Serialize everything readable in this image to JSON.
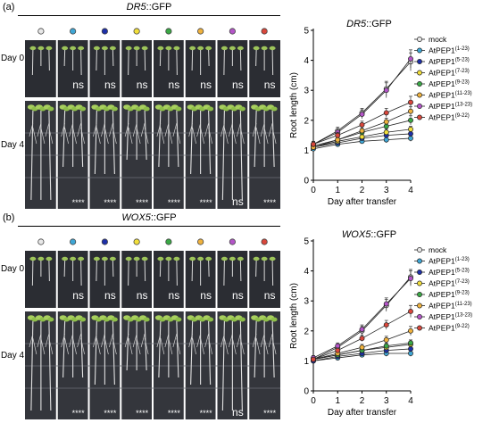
{
  "series_colors": [
    "#e8e8e8",
    "#3fa7d6",
    "#1d2fa8",
    "#f2df3a",
    "#3aa845",
    "#f0b23d",
    "#b455c8",
    "#d9473c"
  ],
  "panels": [
    {
      "label": "(a)",
      "reporter": "DR5",
      "suffix": "::GFP",
      "days": [
        "Day 0",
        "Day 4"
      ],
      "day0_sig": [
        "",
        "ns",
        "ns",
        "ns",
        "ns",
        "ns",
        "ns",
        "ns"
      ],
      "day4_sig": [
        "",
        "****",
        "****",
        "****",
        "****",
        "****",
        "ns",
        "****"
      ]
    },
    {
      "label": "(b)",
      "reporter": "WOX5",
      "suffix": "::GFP",
      "days": [
        "Day 0",
        "Day 4"
      ],
      "day0_sig": [
        "",
        "ns",
        "ns",
        "ns",
        "ns",
        "ns",
        "ns",
        "ns"
      ],
      "day4_sig": [
        "",
        "****",
        "****",
        "****",
        "****",
        "****",
        "ns",
        "****"
      ]
    }
  ],
  "chart_data": [
    {
      "type": "line",
      "title": "DR5::GFP",
      "xlabel": "Day after transfer",
      "ylabel": "Root length (cm)",
      "x": [
        0,
        1,
        2,
        3,
        4
      ],
      "xlim": [
        0,
        4
      ],
      "ylim": [
        0,
        5
      ],
      "xticks": [
        "0",
        "1",
        "2",
        "3",
        "4"
      ],
      "yticks": [
        "0",
        "1",
        "2",
        "3",
        "4",
        "5"
      ],
      "legend_position": "right",
      "series": [
        {
          "name": "mock",
          "base": "mock",
          "sup": "",
          "values": [
            1.2,
            1.65,
            2.25,
            3.05,
            3.95
          ],
          "err": [
            0.1,
            0.12,
            0.15,
            0.25,
            0.3
          ]
        },
        {
          "name": "AtPEP1(1-23)",
          "base": "AtPEP1",
          "sup": "(1-23)",
          "values": [
            1.05,
            1.2,
            1.3,
            1.35,
            1.4
          ],
          "err": [
            0.05,
            0.06,
            0.08,
            0.1,
            0.1
          ]
        },
        {
          "name": "AtPEP1(5-23)",
          "base": "AtPEP1",
          "sup": "(5-23)",
          "values": [
            1.1,
            1.25,
            1.4,
            1.5,
            1.55
          ],
          "err": [
            0.05,
            0.06,
            0.08,
            0.1,
            0.1
          ]
        },
        {
          "name": "AtPEP1(7-23)",
          "base": "AtPEP1",
          "sup": "(7-23)",
          "values": [
            1.1,
            1.3,
            1.45,
            1.6,
            1.7
          ],
          "err": [
            0.05,
            0.06,
            0.08,
            0.1,
            0.1
          ]
        },
        {
          "name": "AtPEP1(9-23)",
          "base": "AtPEP1",
          "sup": "(9-23)",
          "values": [
            1.15,
            1.35,
            1.6,
            1.8,
            2.0
          ],
          "err": [
            0.05,
            0.08,
            0.1,
            0.12,
            0.15
          ]
        },
        {
          "name": "AtPEP1(11-23)",
          "base": "AtPEP1",
          "sup": "(11-23)",
          "values": [
            1.1,
            1.35,
            1.65,
            1.95,
            2.3
          ],
          "err": [
            0.05,
            0.08,
            0.1,
            0.12,
            0.15
          ]
        },
        {
          "name": "AtPEP1(13-23)",
          "base": "AtPEP1",
          "sup": "(13-23)",
          "values": [
            1.2,
            1.6,
            2.2,
            3.0,
            4.05
          ],
          "err": [
            0.1,
            0.12,
            0.15,
            0.25,
            0.3
          ]
        },
        {
          "name": "AtPEP1(9-22)",
          "base": "AtPEP1",
          "sup": "(9-22)",
          "values": [
            1.2,
            1.5,
            1.85,
            2.25,
            2.6
          ],
          "err": [
            0.08,
            0.1,
            0.12,
            0.15,
            0.2
          ]
        }
      ]
    },
    {
      "type": "line",
      "title": "WOX5::GFP",
      "xlabel": "Day after transfer",
      "ylabel": "Root length (cm)",
      "x": [
        0,
        1,
        2,
        3,
        4
      ],
      "xlim": [
        0,
        4
      ],
      "ylim": [
        0,
        5
      ],
      "xticks": [
        "0",
        "1",
        "2",
        "3",
        "4"
      ],
      "yticks": [
        "0",
        "1",
        "2",
        "3",
        "4",
        "5"
      ],
      "legend_position": "right",
      "series": [
        {
          "name": "mock",
          "base": "mock",
          "sup": "",
          "values": [
            1.05,
            1.45,
            2.0,
            2.85,
            3.8
          ],
          "err": [
            0.08,
            0.1,
            0.15,
            0.2,
            0.25
          ]
        },
        {
          "name": "AtPEP1(1-23)",
          "base": "AtPEP1",
          "sup": "(1-23)",
          "values": [
            1.0,
            1.1,
            1.2,
            1.25,
            1.25
          ],
          "err": [
            0.05,
            0.06,
            0.08,
            0.1,
            0.1
          ]
        },
        {
          "name": "AtPEP1(5-23)",
          "base": "AtPEP1",
          "sup": "(5-23)",
          "values": [
            1.0,
            1.15,
            1.25,
            1.35,
            1.4
          ],
          "err": [
            0.05,
            0.06,
            0.08,
            0.1,
            0.1
          ]
        },
        {
          "name": "AtPEP1(7-23)",
          "base": "AtPEP1",
          "sup": "(7-23)",
          "values": [
            1.05,
            1.2,
            1.35,
            1.45,
            1.55
          ],
          "err": [
            0.05,
            0.06,
            0.08,
            0.1,
            0.1
          ]
        },
        {
          "name": "AtPEP1(9-23)",
          "base": "AtPEP1",
          "sup": "(9-23)",
          "values": [
            1.05,
            1.2,
            1.35,
            1.5,
            1.6
          ],
          "err": [
            0.05,
            0.06,
            0.08,
            0.1,
            0.1
          ]
        },
        {
          "name": "AtPEP1(11-23)",
          "base": "AtPEP1",
          "sup": "(11-23)",
          "values": [
            1.05,
            1.25,
            1.45,
            1.7,
            2.0
          ],
          "err": [
            0.05,
            0.08,
            0.1,
            0.12,
            0.15
          ]
        },
        {
          "name": "AtPEP1(13-23)",
          "base": "AtPEP1",
          "sup": "(13-23)",
          "values": [
            1.1,
            1.5,
            2.05,
            2.9,
            3.75
          ],
          "err": [
            0.08,
            0.1,
            0.15,
            0.2,
            0.25
          ]
        },
        {
          "name": "AtPEP1(9-22)",
          "base": "AtPEP1",
          "sup": "(9-22)",
          "values": [
            1.05,
            1.35,
            1.75,
            2.2,
            2.65
          ],
          "err": [
            0.05,
            0.08,
            0.1,
            0.15,
            0.2
          ]
        }
      ]
    }
  ]
}
